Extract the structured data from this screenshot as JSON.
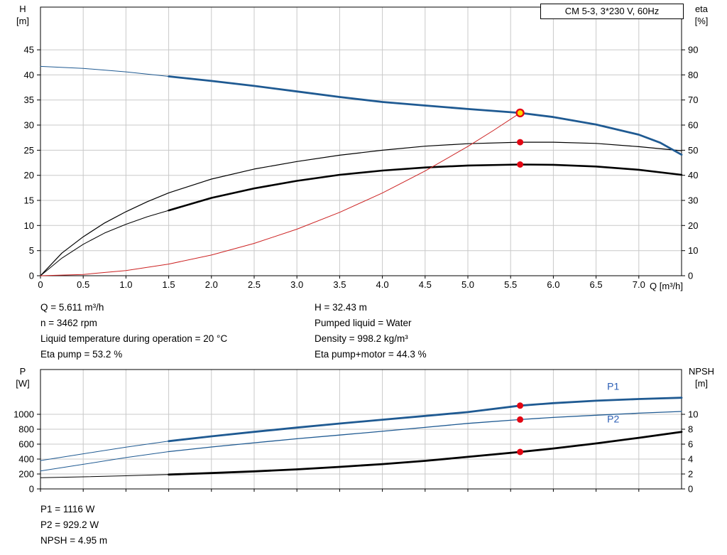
{
  "colors": {
    "blue": "#1f5a92",
    "black": "#000000",
    "red": "#cc2222",
    "dot_red": "#e30613",
    "op_fill": "#ffd700",
    "grid": "#c9c9c9",
    "axis": "#000000",
    "label_blue": "#2a5db4"
  },
  "info_top": {
    "col1": [
      "Q = 5.611 m³/h",
      "n = 3462 rpm",
      "Liquid temperature during operation = 20 °C",
      "Eta pump = 53.2 %"
    ],
    "col2": [
      "H = 32.43 m",
      "Pumped liquid = Water",
      "Density = 998.2 kg/m³",
      "Eta pump+motor = 44.3 %"
    ]
  },
  "info_bottom": [
    "P1 = 1116 W",
    "P2 = 929.2 W",
    "NPSH = 4.95 m"
  ],
  "chart_data": [
    {
      "id": "head-eta-chart",
      "type": "line",
      "title": "CM 5-3, 3*230 V, 60Hz",
      "x": {
        "label": "Q [m³/h]",
        "min": 0,
        "max": 7.5,
        "ticks": [
          0,
          0.5,
          1,
          1.5,
          2,
          2.5,
          3,
          3.5,
          4,
          4.5,
          5,
          5.5,
          6,
          6.5,
          7
        ],
        "tick_labels": [
          "0",
          "0.5",
          "1.0",
          "1.5",
          "2.0",
          "2.5",
          "3.0",
          "3.5",
          "4.0",
          "4.5",
          "5.0",
          "5.5",
          "6.0",
          "6.5",
          "7.0"
        ],
        "show_tick_labels": true
      },
      "y_left": {
        "label": "H",
        "unit": "[m]",
        "min": 0,
        "max": 53.5,
        "ticks": [
          0,
          5,
          10,
          15,
          20,
          25,
          30,
          35,
          40,
          45
        ],
        "tick_labels": [
          "0",
          "5",
          "10",
          "15",
          "20",
          "25",
          "30",
          "35",
          "40",
          "45"
        ]
      },
      "y_right": {
        "label": "eta",
        "unit": "[%]",
        "min": 0,
        "max": 107,
        "ticks": [
          0,
          10,
          20,
          30,
          40,
          50,
          60,
          70,
          80,
          90
        ],
        "tick_labels": [
          "0",
          "10",
          "20",
          "30",
          "40",
          "50",
          "60",
          "70",
          "80",
          "90"
        ]
      },
      "series": [
        {
          "name": "eta-pump",
          "axis": "right",
          "color": "black",
          "width": 1.2,
          "points": [
            [
              0,
              0
            ],
            [
              0.25,
              9
            ],
            [
              0.5,
              15.5
            ],
            [
              0.75,
              21
            ],
            [
              1,
              25.5
            ],
            [
              1.25,
              29.5
            ],
            [
              1.5,
              33
            ],
            [
              2,
              38.5
            ],
            [
              2.5,
              42.5
            ],
            [
              3,
              45.5
            ],
            [
              3.5,
              48
            ],
            [
              4,
              50
            ],
            [
              4.5,
              51.6
            ],
            [
              5,
              52.6
            ],
            [
              5.611,
              53.2
            ],
            [
              6,
              53.2
            ],
            [
              6.5,
              52.7
            ],
            [
              7,
              51.4
            ],
            [
              7.5,
              49.8
            ]
          ]
        },
        {
          "name": "eta-pump-motor-lead",
          "axis": "right",
          "color": "black",
          "width": 1,
          "points": [
            [
              0,
              0
            ],
            [
              0.25,
              7
            ],
            [
              0.5,
              12.5
            ],
            [
              0.75,
              17
            ],
            [
              1,
              20.5
            ],
            [
              1.25,
              23.5
            ],
            [
              1.5,
              26
            ]
          ]
        },
        {
          "name": "eta-pump-motor",
          "axis": "right",
          "color": "black",
          "width": 2.6,
          "points": [
            [
              1.5,
              26
            ],
            [
              2,
              31
            ],
            [
              2.5,
              34.8
            ],
            [
              3,
              37.8
            ],
            [
              3.5,
              40.2
            ],
            [
              4,
              41.9
            ],
            [
              4.5,
              43.1
            ],
            [
              5,
              43.9
            ],
            [
              5.611,
              44.3
            ],
            [
              6,
              44.2
            ],
            [
              6.5,
              43.5
            ],
            [
              7,
              42.2
            ],
            [
              7.5,
              40.2
            ]
          ]
        },
        {
          "name": "system-curve",
          "axis": "left",
          "color": "red",
          "width": 1,
          "points": [
            [
              0,
              0
            ],
            [
              0.5,
              0.26
            ],
            [
              1,
              1.03
            ],
            [
              1.5,
              2.32
            ],
            [
              2,
              4.12
            ],
            [
              2.5,
              6.44
            ],
            [
              3,
              9.27
            ],
            [
              3.5,
              12.62
            ],
            [
              4,
              16.48
            ],
            [
              4.5,
              20.86
            ],
            [
              5,
              25.75
            ],
            [
              5.3,
              28.94
            ],
            [
              5.611,
              32.43
            ]
          ]
        },
        {
          "name": "hq-lead",
          "axis": "left",
          "color": "blue",
          "width": 1,
          "points": [
            [
              0,
              41.7
            ],
            [
              0.5,
              41.3
            ],
            [
              1,
              40.6
            ],
            [
              1.5,
              39.7
            ]
          ]
        },
        {
          "name": "hq",
          "axis": "left",
          "color": "blue",
          "width": 2.8,
          "points": [
            [
              1.5,
              39.7
            ],
            [
              2,
              38.8
            ],
            [
              2.5,
              37.8
            ],
            [
              3,
              36.7
            ],
            [
              3.5,
              35.6
            ],
            [
              4,
              34.6
            ],
            [
              4.5,
              33.9
            ],
            [
              5,
              33.2
            ],
            [
              5.611,
              32.43
            ],
            [
              6,
              31.6
            ],
            [
              6.5,
              30.1
            ],
            [
              7,
              28.1
            ],
            [
              7.25,
              26.5
            ],
            [
              7.5,
              24.1
            ]
          ]
        }
      ],
      "markers": [
        {
          "type": "dot",
          "axis": "right",
          "x": 5.611,
          "y": 53.2
        },
        {
          "type": "dot",
          "axis": "right",
          "x": 5.611,
          "y": 44.3
        },
        {
          "type": "duty",
          "axis": "left",
          "x": 5.611,
          "y": 32.43
        }
      ],
      "curve_labels": []
    },
    {
      "id": "power-npsh-chart",
      "type": "line",
      "title": "",
      "x": {
        "label": "",
        "min": 0,
        "max": 7.5,
        "ticks": [
          0,
          0.5,
          1,
          1.5,
          2,
          2.5,
          3,
          3.5,
          4,
          4.5,
          5,
          5.5,
          6,
          6.5,
          7
        ],
        "tick_labels": [],
        "show_tick_labels": false
      },
      "y_left": {
        "label": "P",
        "unit": "[W]",
        "min": 0,
        "max": 1600,
        "ticks": [
          0,
          200,
          400,
          600,
          800,
          1000
        ],
        "tick_labels": [
          "0",
          "200",
          "400",
          "600",
          "800",
          "1000"
        ]
      },
      "y_right": {
        "label": "NPSH",
        "unit": "[m]",
        "min": 0,
        "max": 16,
        "ticks": [
          0,
          2,
          4,
          6,
          8,
          10
        ],
        "tick_labels": [
          "0",
          "2",
          "4",
          "6",
          "8",
          "10"
        ]
      },
      "series": [
        {
          "name": "p1-lead",
          "axis": "left",
          "color": "blue",
          "width": 1,
          "points": [
            [
              0,
              380
            ],
            [
              0.5,
              470
            ],
            [
              1,
              560
            ],
            [
              1.5,
              640
            ]
          ]
        },
        {
          "name": "p1",
          "axis": "left",
          "color": "blue",
          "width": 2.8,
          "points": [
            [
              1.5,
              640
            ],
            [
              2,
              705
            ],
            [
              2.5,
              765
            ],
            [
              3,
              822
            ],
            [
              3.5,
              876
            ],
            [
              4,
              928
            ],
            [
              4.5,
              978
            ],
            [
              5,
              1030
            ],
            [
              5.611,
              1116
            ],
            [
              6,
              1150
            ],
            [
              6.5,
              1182
            ],
            [
              7,
              1205
            ],
            [
              7.5,
              1222
            ]
          ]
        },
        {
          "name": "p2-lead",
          "axis": "left",
          "color": "blue",
          "width": 1,
          "points": [
            [
              0,
              240
            ],
            [
              0.5,
              330
            ],
            [
              1,
              420
            ],
            [
              1.5,
              500
            ]
          ]
        },
        {
          "name": "p2",
          "axis": "left",
          "color": "blue",
          "width": 1.3,
          "points": [
            [
              1.5,
              500
            ],
            [
              2,
              562
            ],
            [
              2.5,
              618
            ],
            [
              3,
              672
            ],
            [
              3.5,
              722
            ],
            [
              4,
              772
            ],
            [
              4.5,
              825
            ],
            [
              5,
              878
            ],
            [
              5.611,
              929.2
            ],
            [
              6,
              958
            ],
            [
              6.5,
              988
            ],
            [
              7,
              1015
            ],
            [
              7.5,
              1038
            ]
          ]
        },
        {
          "name": "npsh-lead",
          "axis": "right",
          "color": "black",
          "width": 1,
          "points": [
            [
              0,
              1.5
            ],
            [
              0.5,
              1.62
            ],
            [
              1,
              1.76
            ],
            [
              1.5,
              1.92
            ]
          ]
        },
        {
          "name": "npsh",
          "axis": "right",
          "color": "black",
          "width": 2.8,
          "points": [
            [
              1.5,
              1.92
            ],
            [
              2,
              2.12
            ],
            [
              2.5,
              2.35
            ],
            [
              3,
              2.62
            ],
            [
              3.5,
              2.95
            ],
            [
              4,
              3.32
            ],
            [
              4.5,
              3.76
            ],
            [
              5,
              4.3
            ],
            [
              5.611,
              4.95
            ],
            [
              6,
              5.42
            ],
            [
              6.5,
              6.1
            ],
            [
              7,
              6.85
            ],
            [
              7.5,
              7.65
            ]
          ]
        }
      ],
      "markers": [
        {
          "type": "dot",
          "axis": "left",
          "x": 5.611,
          "y": 1116
        },
        {
          "type": "dot",
          "axis": "left",
          "x": 5.611,
          "y": 929.2
        },
        {
          "type": "dot",
          "axis": "right",
          "x": 5.611,
          "y": 4.95
        }
      ],
      "curve_labels": [
        {
          "text": "P1",
          "axis": "left",
          "x": 6.7,
          "y": 1330
        },
        {
          "text": "P2",
          "axis": "left",
          "x": 6.7,
          "y": 890
        }
      ]
    }
  ]
}
